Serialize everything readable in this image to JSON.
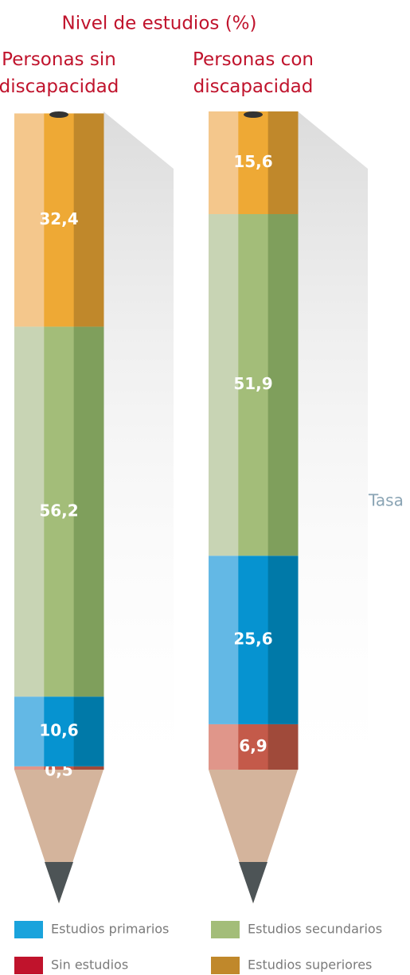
{
  "chart_data": {
    "type": "stacked_bar",
    "title": "Nivel de estudios (%)",
    "annotation": "Tasa",
    "categories": [
      "Personas sin discapacidad",
      "Personas con discapacidad"
    ],
    "ylim": [
      0,
      100
    ],
    "series": [
      {
        "name": "Sin estudios",
        "color": "#c0132c",
        "shades": [
          "#e0968a",
          "#c45a4a",
          "#a04a3a"
        ],
        "values": [
          0.5,
          6.9
        ],
        "value_labels": [
          "0,5",
          "6,9"
        ]
      },
      {
        "name": "Estudios primarios",
        "color": "#1aa3dc",
        "shades": [
          "#63b8e5",
          "#0693d0",
          "#0079a8"
        ],
        "values": [
          10.6,
          25.6
        ],
        "value_labels": [
          "10,6",
          "25,6"
        ]
      },
      {
        "name": "Estudios secundarios",
        "color": "#a3bd79",
        "shades": [
          "#c8d4b4",
          "#a3bd79",
          "#7f9f5c"
        ],
        "values": [
          56.2,
          51.9
        ],
        "value_labels": [
          "56,2",
          "51,9"
        ]
      },
      {
        "name": "Estudios superiores",
        "color": "#c0882b",
        "shades": [
          "#f4c78c",
          "#eea935",
          "#c0882b"
        ],
        "values": [
          32.4,
          15.6
        ],
        "value_labels": [
          "32,4",
          "15,6"
        ]
      }
    ]
  }
}
